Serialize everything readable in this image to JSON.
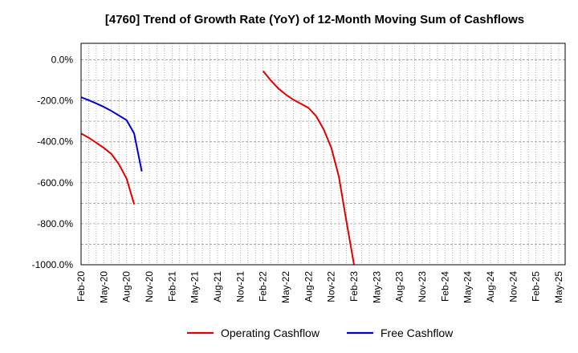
{
  "chart_data": {
    "type": "line",
    "title": "[4760]  Trend of Growth Rate (YoY) of 12-Month Moving Sum of Cashflows",
    "xlabel": "",
    "ylabel": "",
    "ylim": [
      -1000,
      80
    ],
    "y_ticks": [
      0,
      -200,
      -400,
      -600,
      -800,
      -1000
    ],
    "y_tick_labels": [
      "0.0%",
      "-200.0%",
      "-400.0%",
      "-600.0%",
      "-800.0%",
      "-1000.0%"
    ],
    "x_tick_labels": [
      "Feb-20",
      "May-20",
      "Aug-20",
      "Nov-20",
      "Feb-21",
      "May-21",
      "Aug-21",
      "Nov-21",
      "Feb-22",
      "May-22",
      "Aug-22",
      "Nov-22",
      "Feb-23",
      "May-23",
      "Aug-23",
      "Nov-23",
      "Feb-24",
      "May-24",
      "Aug-24",
      "Nov-24",
      "Feb-25",
      "May-25"
    ],
    "grid": true,
    "legend_position": "bottom",
    "series": [
      {
        "name": "Operating Cashflow",
        "color": "#e00000",
        "points": [
          [
            "Feb-20",
            -360
          ],
          [
            "Mar-20",
            -380
          ],
          [
            "Apr-20",
            -405
          ],
          [
            "May-20",
            -430
          ],
          [
            "Jun-20",
            -460
          ],
          [
            "Jul-20",
            -510
          ],
          [
            "Aug-20",
            -580
          ],
          [
            "Sep-20",
            -705
          ]
        ]
      },
      {
        "name": "Operating Cashflow",
        "color": "#e00000",
        "points": [
          [
            "Feb-22",
            -55
          ],
          [
            "Mar-22",
            -100
          ],
          [
            "Apr-22",
            -140
          ],
          [
            "May-22",
            -170
          ],
          [
            "Jun-22",
            -195
          ],
          [
            "Jul-22",
            -215
          ],
          [
            "Aug-22",
            -235
          ],
          [
            "Sep-22",
            -275
          ],
          [
            "Oct-22",
            -340
          ],
          [
            "Nov-22",
            -430
          ],
          [
            "Dec-22",
            -570
          ],
          [
            "Jan-23",
            -790
          ],
          [
            "Feb-23",
            -1000
          ]
        ]
      },
      {
        "name": "Free Cashflow",
        "color": "#0000d0",
        "points": [
          [
            "Feb-20",
            -183
          ],
          [
            "Mar-20",
            -197
          ],
          [
            "Apr-20",
            -213
          ],
          [
            "May-20",
            -230
          ],
          [
            "Jun-20",
            -250
          ],
          [
            "Jul-20",
            -272
          ],
          [
            "Aug-20",
            -295
          ],
          [
            "Sep-20",
            -360
          ],
          [
            "Oct-20",
            -545
          ]
        ]
      }
    ],
    "legend": [
      {
        "name": "Operating Cashflow",
        "color": "#e00000"
      },
      {
        "name": "Free Cashflow",
        "color": "#0000d0"
      }
    ]
  }
}
